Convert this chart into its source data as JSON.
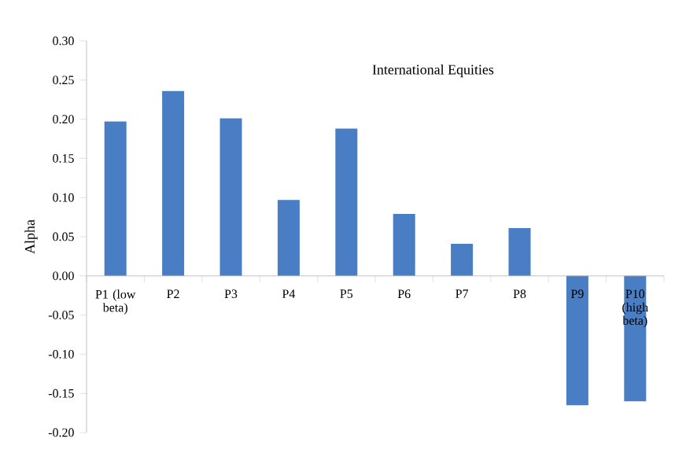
{
  "chart_data": {
    "type": "bar",
    "title": "International Equities",
    "ylabel": "Alpha",
    "categories": [
      "P1 (low beta)",
      "P2",
      "P3",
      "P4",
      "P5",
      "P6",
      "P7",
      "P8",
      "P9",
      "P10 (high beta)"
    ],
    "values": [
      0.197,
      0.236,
      0.201,
      0.097,
      0.188,
      0.079,
      0.041,
      0.061,
      -0.165,
      -0.16
    ],
    "color": "#4a7ec4",
    "ylim": [
      -0.2,
      0.3
    ],
    "yticks": [
      {
        "value": -0.2,
        "label": "-0.20"
      },
      {
        "value": -0.15,
        "label": "-0.15"
      },
      {
        "value": -0.1,
        "label": "-0.10"
      },
      {
        "value": -0.05,
        "label": "-0.05"
      },
      {
        "value": 0,
        "label": "0.00"
      },
      {
        "value": 0.05,
        "label": "0.05"
      },
      {
        "value": 0.1,
        "label": "0.10"
      },
      {
        "value": 0.15,
        "label": "0.15"
      },
      {
        "value": 0.2,
        "label": "0.20"
      },
      {
        "value": 0.25,
        "label": "0.25"
      },
      {
        "value": 0.3,
        "label": "0.30"
      }
    ],
    "grid": false
  }
}
